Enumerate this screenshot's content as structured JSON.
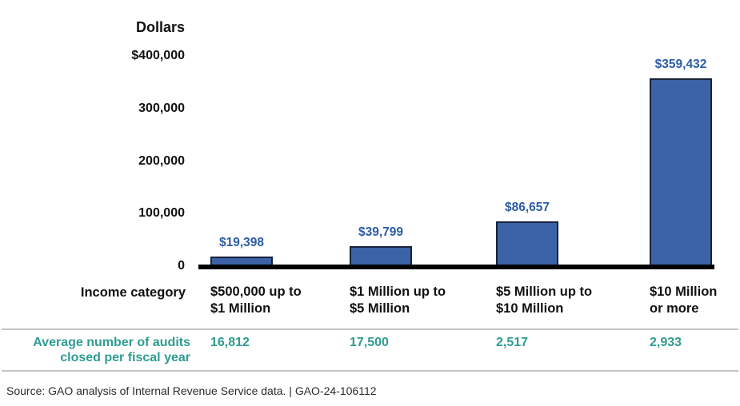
{
  "chart_data": {
    "type": "bar",
    "title": "Dollars",
    "y_axis_title": "Dollars",
    "x_axis_label": "Income category",
    "categories": [
      "$500,000 up to\n$1 Million",
      "$1 Million up to\n$5 Million",
      "$5 Million up to\n$10 Million",
      "$10 Million\nor more"
    ],
    "values": [
      19398,
      39799,
      86657,
      359432
    ],
    "value_labels": [
      "$19,398",
      "$39,799",
      "$86,657",
      "$359,432"
    ],
    "ylim": [
      0,
      400000
    ],
    "grid": false,
    "legend": null,
    "y_ticks": [
      {
        "value": 400000,
        "label": "$400,000"
      },
      {
        "value": 300000,
        "label": "300,000"
      },
      {
        "value": 200000,
        "label": "200,000"
      },
      {
        "value": 100000,
        "label": "100,000"
      },
      {
        "value": 0,
        "label": "0"
      }
    ],
    "audits_row": {
      "label": "Average number of audits\nclosed per fiscal year",
      "values": [
        "16,812",
        "17,500",
        "2,517",
        "2,933"
      ]
    },
    "source": "Source: GAO analysis of Internal Revenue Service data.  |  GAO-24-106112"
  },
  "colors": {
    "bar_fill": "#3B63A6",
    "bar_border": "#17223B",
    "value_label": "#2D5CA6",
    "teal": "#2F9C91",
    "axis_line": "#000000",
    "rule_line": "#C4C4C4",
    "text": "#111111"
  }
}
